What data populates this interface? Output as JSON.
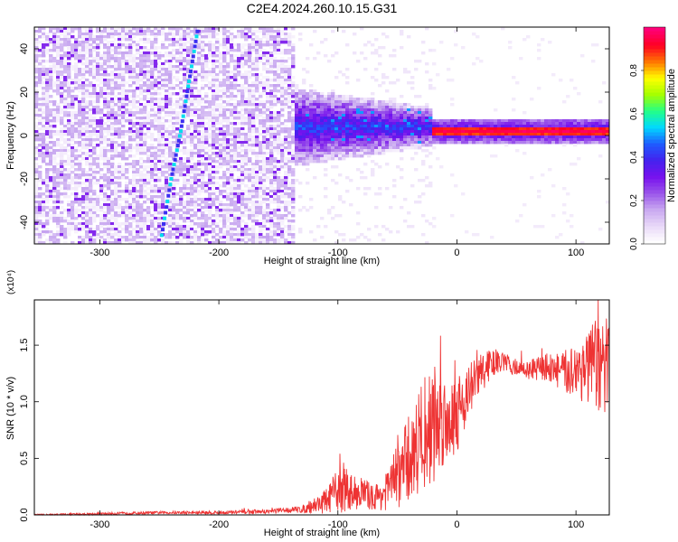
{
  "title": "C2E4.2024.260.10.15.G31",
  "colors": {
    "snr_line": "#ee3333",
    "ridge": "#3355ee",
    "colormap": [
      "#ffffff",
      "#e8d8f8",
      "#c8a8f0",
      "#9a55ea",
      "#7711ee",
      "#4422ee",
      "#1e5cff",
      "#00d8ff",
      "#22ff88",
      "#a4ff00",
      "#ffff00",
      "#ff7700",
      "#ff0022",
      "#ff0077"
    ]
  },
  "chart_data": [
    {
      "type": "heatmap",
      "title": "C2E4.2024.260.10.15.G31",
      "xlabel": "Height of straight line (km)",
      "ylabel": "Frequency (Hz)",
      "xlim": [
        -355,
        128
      ],
      "ylim": [
        -50,
        50
      ],
      "x_ticks": [
        -300,
        -200,
        -100,
        0,
        100
      ],
      "x_tick_labels": [
        "-300",
        "-200",
        "-100",
        "0",
        "100"
      ],
      "y_ticks": [
        -40,
        -20,
        0,
        20,
        40
      ],
      "y_tick_labels": [
        "-40",
        "-20",
        "0",
        "20",
        "40"
      ],
      "colorbar": {
        "label": "Normalized spectral amplitude",
        "range": [
          0,
          1
        ],
        "ticks": [
          0.0,
          0.2,
          0.4,
          0.6,
          0.8
        ],
        "tick_labels": [
          "0.0",
          "0.2",
          "0.4",
          "0.6",
          "0.8"
        ]
      },
      "regions": [
        {
          "description": "broadband noise",
          "x_range": [
            -355,
            -135
          ],
          "f_range": [
            -50,
            50
          ],
          "amplitude": 0.12
        },
        {
          "description": "transition",
          "x_range": [
            -135,
            -20
          ],
          "f_range": [
            -12,
            20
          ],
          "amplitude": 0.35
        },
        {
          "description": "carrier",
          "x_range": [
            -20,
            128
          ],
          "frequency": 2,
          "amplitude": 0.95
        }
      ],
      "ridge": {
        "description": "diagonal streak",
        "points": [
          [
            -248,
            -46
          ],
          [
            -240,
            -20
          ],
          [
            -232,
            2
          ],
          [
            -225,
            25
          ],
          [
            -218,
            48
          ]
        ],
        "amplitude": 0.4
      }
    },
    {
      "type": "line",
      "xlabel": "Height of straight line (km)",
      "ylabel": "SNR (10 * v/v)",
      "y_multiplier": "(x10⁴)",
      "xlim": [
        -355,
        128
      ],
      "ylim": [
        0,
        1.9
      ],
      "x_ticks": [
        -300,
        -200,
        -100,
        0,
        100
      ],
      "x_tick_labels": [
        "-300",
        "-200",
        "-100",
        "0",
        "100"
      ],
      "y_ticks": [
        0.0,
        0.5,
        1.0,
        1.5
      ],
      "y_tick_labels": [
        "0.0",
        "0.5",
        "1.0",
        "1.5"
      ],
      "series": [
        {
          "x": [
            -355,
            -300,
            -250,
            -200,
            -160,
            -130,
            -110,
            -100,
            -95,
            -90,
            -80,
            -70,
            -60,
            -50,
            -40,
            -30,
            -20,
            -10,
            0,
            10,
            20,
            30,
            40,
            50,
            60,
            70,
            80,
            90,
            100,
            110,
            120,
            128
          ],
          "y": [
            0.0,
            0.01,
            0.02,
            0.02,
            0.03,
            0.05,
            0.12,
            0.22,
            0.25,
            0.2,
            0.2,
            0.15,
            0.2,
            0.35,
            0.5,
            0.7,
            0.8,
            0.85,
            0.9,
            1.1,
            1.25,
            1.35,
            1.35,
            1.3,
            1.28,
            1.3,
            1.3,
            1.25,
            1.3,
            1.3,
            1.28,
            1.3
          ],
          "noise": [
            0.004,
            0.006,
            0.008,
            0.01,
            0.012,
            0.02,
            0.07,
            0.12,
            0.15,
            0.1,
            0.09,
            0.07,
            0.1,
            0.18,
            0.25,
            0.3,
            0.35,
            0.25,
            0.22,
            0.15,
            0.12,
            0.08,
            0.05,
            0.05,
            0.05,
            0.07,
            0.09,
            0.12,
            0.16,
            0.22,
            0.3,
            0.3
          ]
        }
      ]
    }
  ]
}
